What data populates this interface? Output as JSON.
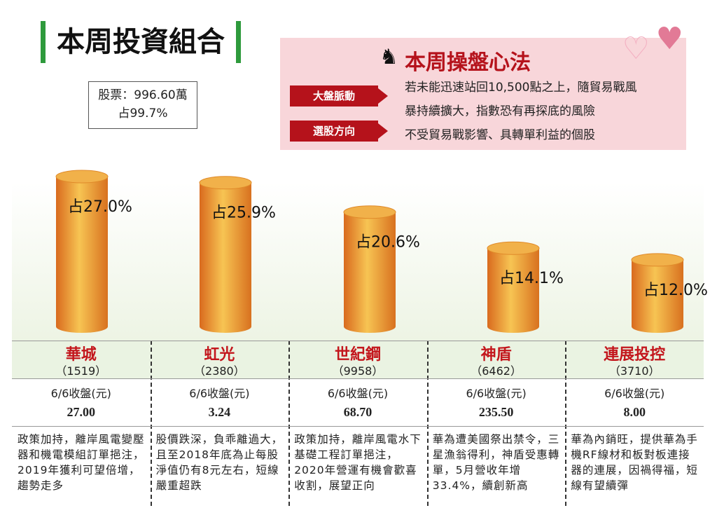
{
  "title": "本周投資組合",
  "stock_box": {
    "line1": "股票：996.60萬",
    "line2": "占99.7%"
  },
  "panel": {
    "title": "本周操盤心法",
    "tag1": "大盤脈動",
    "tag2": "選股方向",
    "text1a": "若未能迅速站回10,500點之上，隨貿易戰風",
    "text1b": "暴持續擴大，指數恐有再探底的風險",
    "text2": "不受貿易戰影響、具轉單利益的個股"
  },
  "chart_data": {
    "type": "bar",
    "categories": [
      "華城",
      "虹光",
      "世紀鋼",
      "神盾",
      "連展投控"
    ],
    "values": [
      27.0,
      25.9,
      20.6,
      14.1,
      12.0
    ],
    "labels": [
      "占27.0%",
      "占25.9%",
      "占20.6%",
      "占14.1%",
      "占12.0%"
    ],
    "ylim": [
      0,
      30
    ]
  },
  "stocks": [
    {
      "name": "華城",
      "code": "（1519）",
      "price_label": "6/6收盤(元)",
      "price": "27.00",
      "desc": "政策加持，離岸風電變壓器和機電模組訂單挹注，2019年獲利可望倍增，趨勢走多"
    },
    {
      "name": "虹光",
      "code": "（2380）",
      "price_label": "6/6收盤(元)",
      "price": "3.24",
      "desc": "股價跌深，負乖離過大，且至2018年底為止每股淨值仍有8元左右，短線嚴重超跌"
    },
    {
      "name": "世紀鋼",
      "code": "（9958）",
      "price_label": "6/6收盤(元)",
      "price": "68.70",
      "desc": "政策加持，離岸風電水下基礎工程訂單挹注，2020年營運有機會歡喜收割，展望正向"
    },
    {
      "name": "神盾",
      "code": "（6462）",
      "price_label": "6/6收盤(元)",
      "price": "235.50",
      "desc": "華為遭美國祭出禁令，三星漁翁得利，神盾受惠轉單，5月營收年增33.4%，續創新高"
    },
    {
      "name": "連展投控",
      "code": "（3710）",
      "price_label": "6/6收盤(元)",
      "price": "8.00",
      "desc": "華為內銷旺，提供華為手機RF線材和板對板連接器的連展，因禍得福，短線有望續彈"
    }
  ],
  "colors": {
    "accent": "#b5121b",
    "panel_bg": "#f8d6da",
    "bar": "#e0822a",
    "green": "#2e9a3c"
  }
}
